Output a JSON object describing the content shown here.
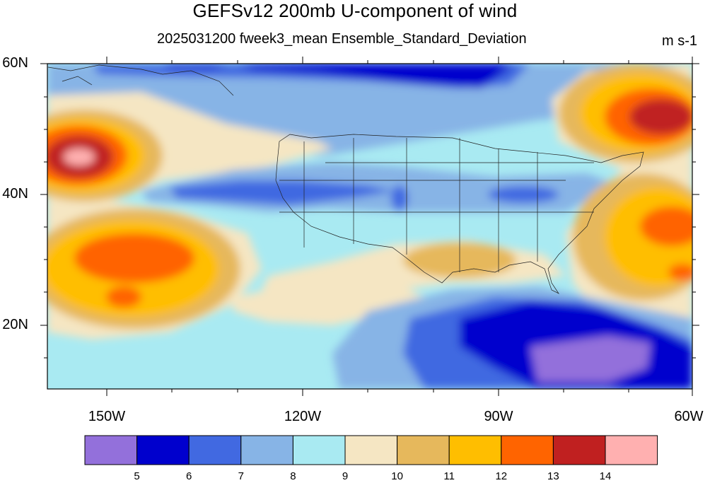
{
  "title": "GEFSv12 200mb U-component of wind",
  "subtitle": "2025031200 fweek3_mean Ensemble_Standard_Deviation",
  "units": "m s-1",
  "lat_labels": [
    "60N",
    "40N",
    "20N"
  ],
  "lon_labels": [
    "150W",
    "120W",
    "90W",
    "60W"
  ],
  "colorbar": {
    "levels": [
      "5",
      "6",
      "7",
      "8",
      "9",
      "10",
      "11",
      "12",
      "13",
      "14"
    ],
    "colors": [
      "#9370db",
      "#0000cd",
      "#4169e1",
      "#87b4e6",
      "#a9eaf2",
      "#f5e6c3",
      "#e6b85c",
      "#ffbe00",
      "#ff6400",
      "#c02020",
      "#ffb0b0"
    ]
  }
}
